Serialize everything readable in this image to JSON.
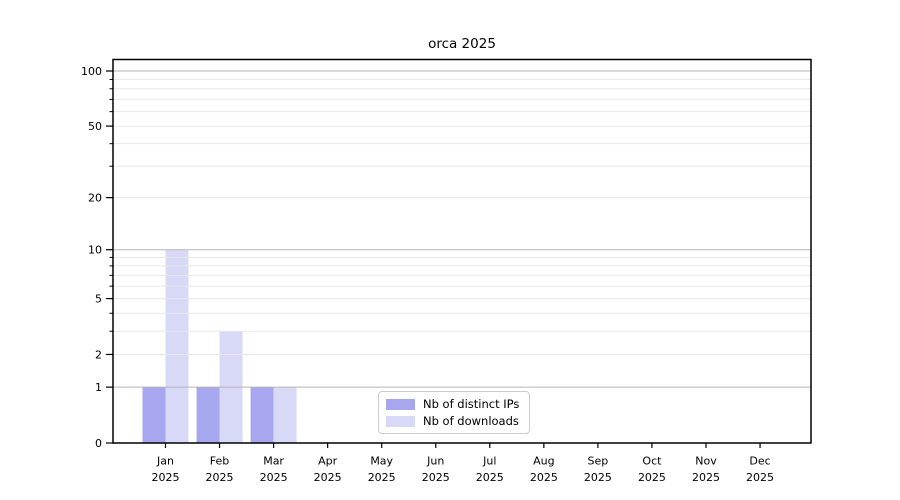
{
  "chart_data": {
    "type": "bar",
    "title": "orca 2025",
    "xlabel": "",
    "ylabel": "",
    "x": {
      "categories": [
        "Jan",
        "Feb",
        "Mar",
        "Apr",
        "May",
        "Jun",
        "Jul",
        "Aug",
        "Sep",
        "Oct",
        "Nov",
        "Dec"
      ],
      "year_line": "2025"
    },
    "y": {
      "scale": "log1p",
      "ticks": [
        0,
        1,
        2,
        5,
        10,
        20,
        50,
        100
      ],
      "lim": [
        0,
        115
      ],
      "major_gridlines": [
        1,
        10,
        100
      ],
      "minor_gridlines": [
        2,
        3,
        4,
        5,
        6,
        7,
        8,
        9,
        20,
        30,
        40,
        50,
        60,
        70,
        80,
        90
      ]
    },
    "series": [
      {
        "name": "Nb of distinct IPs",
        "color": "#a7a7f0",
        "values": [
          1,
          1,
          1,
          0,
          0,
          0,
          0,
          0,
          0,
          0,
          0,
          0
        ]
      },
      {
        "name": "Nb of downloads",
        "color": "#d8d8f7",
        "values": [
          10,
          3,
          1,
          0,
          0,
          0,
          0,
          0,
          0,
          0,
          0,
          0
        ]
      }
    ],
    "legend_position": "lower center",
    "grid": true,
    "colors": {
      "major_grid": "#b5b5b5",
      "minor_grid": "#e8e8e8",
      "spine": "#000000",
      "tick": "#000000",
      "background": "#ffffff"
    }
  }
}
